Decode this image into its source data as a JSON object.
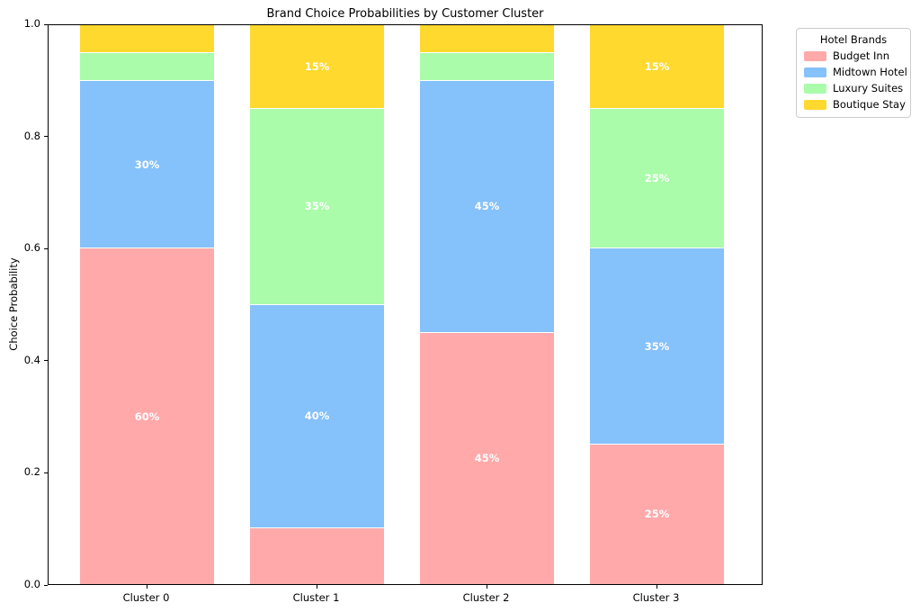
{
  "chart_data": {
    "type": "bar",
    "stacked": true,
    "title": "Brand Choice Probabilities by Customer Cluster",
    "ylabel": "Choice Probability",
    "xlabel": "",
    "categories": [
      "Cluster 0",
      "Cluster 1",
      "Cluster 2",
      "Cluster 3"
    ],
    "series": [
      {
        "name": "Budget Inn",
        "color": "#FFA9AB",
        "values": [
          0.6,
          0.1,
          0.45,
          0.25
        ],
        "segment_labels": [
          "60%",
          "",
          "45%",
          "25%"
        ]
      },
      {
        "name": "Midtown Hotel",
        "color": "#85C1FA",
        "values": [
          0.3,
          0.4,
          0.45,
          0.35
        ],
        "segment_labels": [
          "30%",
          "40%",
          "45%",
          "35%"
        ]
      },
      {
        "name": "Luxury Suites",
        "color": "#AAFCAA",
        "values": [
          0.05,
          0.35,
          0.05,
          0.25
        ],
        "segment_labels": [
          "",
          "35%",
          "",
          "25%"
        ]
      },
      {
        "name": "Boutique Stay",
        "color": "#FFD92E",
        "values": [
          0.05,
          0.15,
          0.05,
          0.15
        ],
        "segment_labels": [
          "",
          "15%",
          "",
          "15%"
        ]
      }
    ],
    "ylim": [
      0.0,
      1.0
    ],
    "yticks": [
      "0.0",
      "0.2",
      "0.4",
      "0.6",
      "0.8",
      "1.0"
    ],
    "grid": false,
    "legend": {
      "title": "Hotel Brands",
      "position": "outside-upper-right"
    },
    "colors": {
      "bar_label_text": "#ffffff",
      "axis": "#000000",
      "legend_border": "#cccccc",
      "background": "#ffffff"
    }
  }
}
